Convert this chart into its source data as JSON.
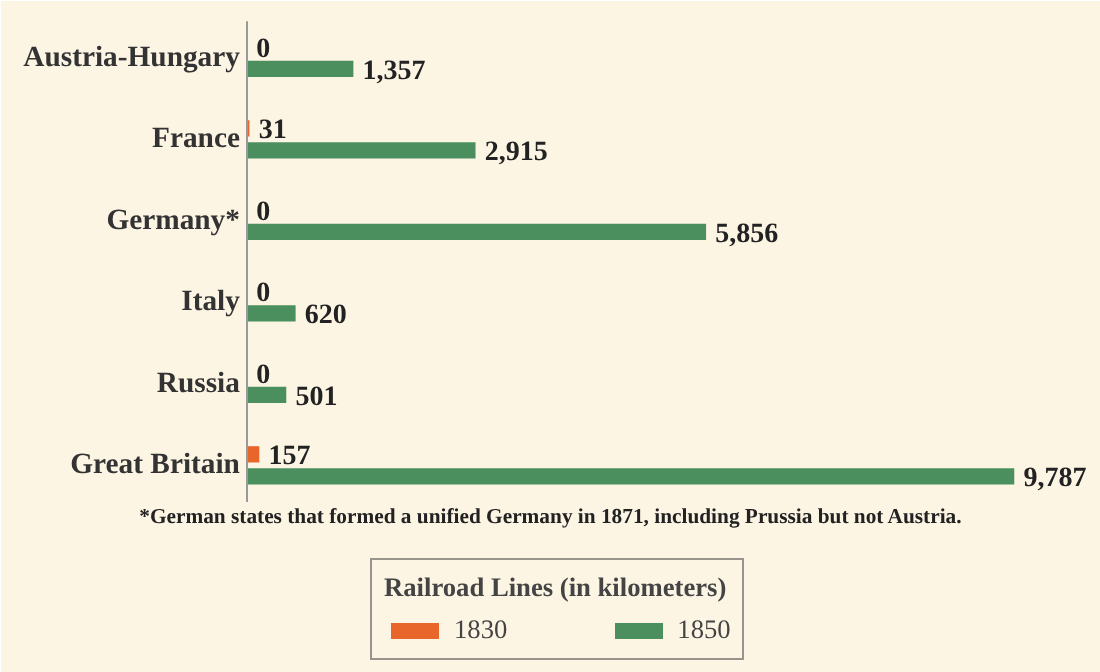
{
  "chart_data": {
    "type": "bar",
    "orientation": "horizontal",
    "categories": [
      "Austria-Hungary",
      "France",
      "Germany*",
      "Italy",
      "Russia",
      "Great Britain"
    ],
    "series": [
      {
        "name": "1830",
        "color": "#e8662a",
        "values": [
          0,
          31,
          0,
          0,
          0,
          157
        ],
        "value_labels": [
          "0",
          "31",
          "0",
          "0",
          "0",
          "157"
        ]
      },
      {
        "name": "1850",
        "color": "#4b8f5e",
        "values": [
          1357,
          2915,
          5856,
          620,
          501,
          9787
        ],
        "value_labels": [
          "1,357",
          "2,915",
          "5,856",
          "620",
          "501",
          "9,787"
        ]
      }
    ],
    "data_labels": true,
    "legend": "bottom",
    "legend_title": "Railroad Lines (in kilometers)",
    "annotations": [
      "*German states that formed a unified Germany in 1871, including Prussia but not Austria."
    ]
  }
}
